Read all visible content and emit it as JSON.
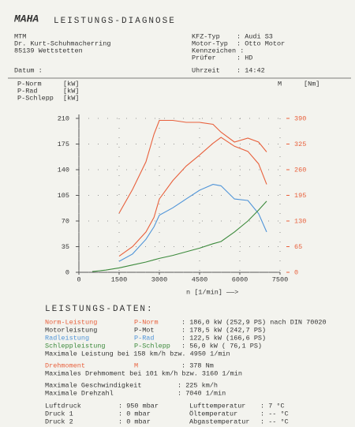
{
  "header": {
    "logo": "MAHA",
    "title": "LEISTUNGS-DIAGNOSE"
  },
  "customer": [
    "MTM",
    "Dr. Kurt-Schuhmacherring",
    "85139 Wettstetten"
  ],
  "vehicle": [
    {
      "label": "KFZ-Typ",
      "value": ": Audi S3"
    },
    {
      "label": "Motor-Typ",
      "value": ": Otto Motor"
    },
    {
      "label": "Kennzeichen :"
    },
    {
      "label": "Prüfer",
      "value": ": HD"
    }
  ],
  "date": "Datum :",
  "time": {
    "label": "Uhrzeit",
    "value": ": 14:42"
  },
  "chart_data": {
    "type": "line",
    "x_label": "n [1/min] ——>",
    "x": [
      0,
      500,
      1000,
      1500,
      2000,
      2500,
      2800,
      3000,
      3500,
      4000,
      4500,
      5000,
      5300,
      5800,
      6300,
      6700,
      7000
    ],
    "xlim": [
      0,
      7500
    ],
    "xticks": [
      0,
      1500,
      3000,
      4500,
      6000,
      7500
    ],
    "ylim": [
      0,
      210
    ],
    "yticks": [
      0,
      35,
      70,
      105,
      140,
      175,
      210
    ],
    "y2lim": [
      0,
      390
    ],
    "y2ticks": [
      0,
      65,
      130,
      195,
      260,
      325,
      390
    ],
    "grid": true,
    "series": [
      {
        "name": "P-Norm",
        "unit": "[kW]",
        "color": "#e8603c",
        "values": [
          null,
          null,
          null,
          22,
          35,
          55,
          75,
          100,
          125,
          145,
          160,
          176,
          184,
          172,
          165,
          148,
          120
        ]
      },
      {
        "name": "P-Rad",
        "unit": "[kW]",
        "color": "#4f94d8",
        "values": [
          null,
          null,
          null,
          15,
          25,
          45,
          62,
          78,
          88,
          100,
          112,
          120,
          118,
          100,
          98,
          80,
          55
        ]
      },
      {
        "name": "P-Schlepp",
        "unit": "[kW]",
        "color": "#3c8a3c",
        "values": [
          null,
          1,
          3,
          6,
          10,
          14,
          17,
          19,
          23,
          28,
          33,
          39,
          42,
          55,
          70,
          85,
          97
        ]
      },
      {
        "name": "M",
        "unit": "[Nm]",
        "color": "#e8603c",
        "axis": "y2",
        "values": [
          null,
          null,
          null,
          150,
          210,
          280,
          350,
          385,
          385,
          380,
          380,
          375,
          355,
          330,
          340,
          330,
          305
        ]
      }
    ]
  },
  "results": {
    "title": "LEISTUNGS-DATEN:",
    "rows": [
      [
        "Norm-Leistung",
        "P-Norm",
        ": 186,0 kW (252,9 PS) nach DIN 70020"
      ],
      [
        "Motorleistung",
        "P-Mot",
        ": 178,5 kW (242,7 PS)"
      ],
      [
        "Radleistung",
        "P-Rad",
        ": 122,5 kW (166,6 PS)"
      ],
      [
        "Schleppleistung",
        "P-Schlepp",
        ":  56,0 kW ( 76,1 PS)"
      ],
      [
        "Maximale Leistung bei 158 km/h bzw. 4950 1/min"
      ],
      [
        "Drehmoment",
        "M",
        ": 378 Nm"
      ],
      [
        "Maximales Drehmoment bei 101 km/h bzw. 3160 1/min"
      ],
      [
        "Maximale Geschwindigkeit",
        ": 225 km/h"
      ],
      [
        "Maximale Drehzahl",
        ": 7040 1/min"
      ],
      [
        "Luftdruck",
        ":  950 mbar",
        "Lufttemperatur",
        ":  7 °C"
      ],
      [
        "Druck 1",
        ":    0 mbar",
        "Öltemperatur",
        ": -- °C"
      ],
      [
        "Druck 2",
        ":    0 mbar",
        "Abgastemperatur",
        ": -- °C"
      ]
    ]
  }
}
